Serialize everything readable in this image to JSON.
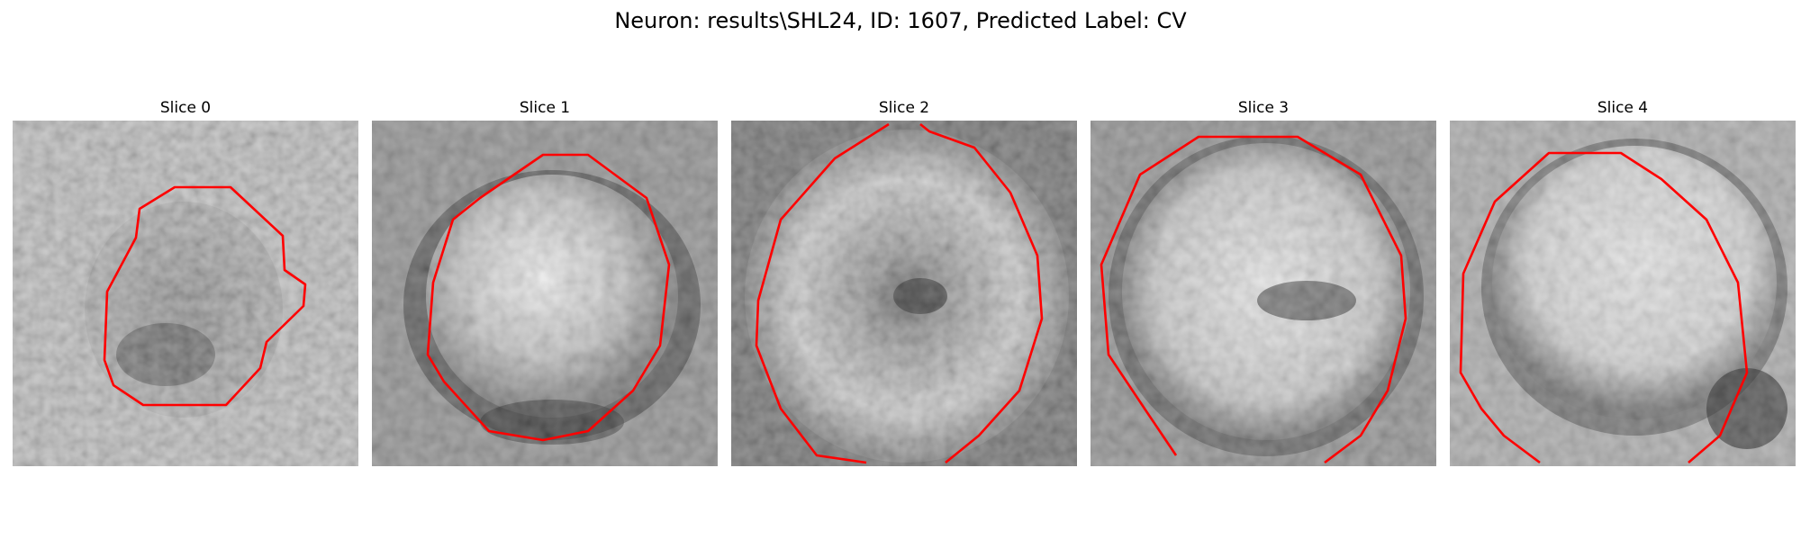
{
  "figure": {
    "title": "Neuron: results\\SHL24, ID: 1607, Predicted Label: CV"
  },
  "panels": [
    {
      "title": "Slice 0"
    },
    {
      "title": "Slice 1"
    },
    {
      "title": "Slice 2"
    },
    {
      "title": "Slice 3"
    },
    {
      "title": "Slice 4"
    }
  ],
  "colors": {
    "contour": "#ff0000",
    "background": "#ffffff"
  }
}
